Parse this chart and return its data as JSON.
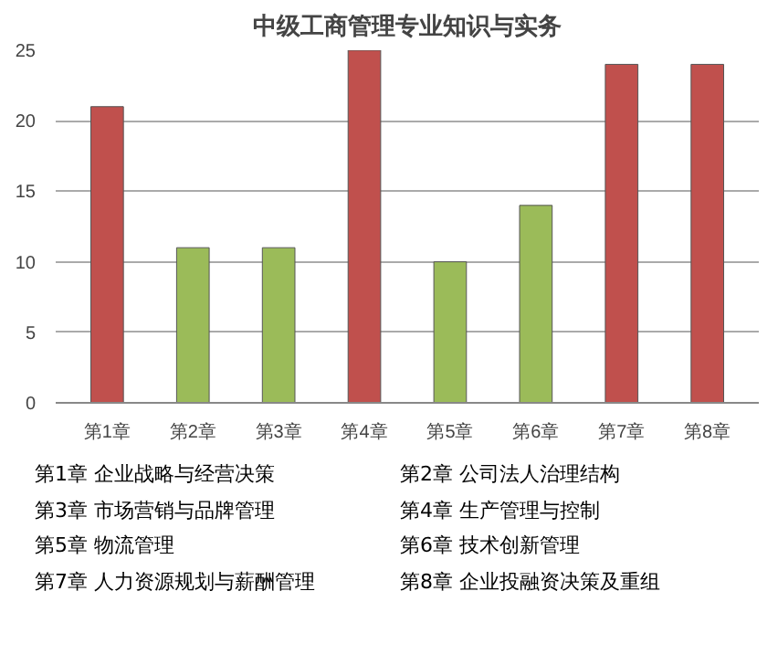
{
  "chart_data": {
    "type": "bar",
    "title": "中级工商管理专业知识与实务",
    "categories": [
      "第1章",
      "第2章",
      "第3章",
      "第4章",
      "第5章",
      "第6章",
      "第7章",
      "第8章"
    ],
    "values": [
      21,
      11,
      11,
      25,
      10,
      14,
      24,
      24
    ],
    "colors": [
      "#c0504d",
      "#9bbb59",
      "#9bbb59",
      "#c0504d",
      "#9bbb59",
      "#9bbb59",
      "#c0504d",
      "#c0504d"
    ],
    "ylim": [
      0,
      25
    ],
    "yticks": [
      0,
      5,
      10,
      15,
      20,
      25
    ],
    "grid": "y",
    "annotations": [
      "第1章  企业战略与经营决策",
      "第2章  公司法人治理结构",
      "第3章  市场营销与品牌管理",
      "第4章  生产管理与控制",
      "第5章  物流管理",
      "第6章  技术创新管理",
      "第7章  人力资源规划与薪酬管理",
      "第8章  企业投融资决策及重组"
    ]
  }
}
